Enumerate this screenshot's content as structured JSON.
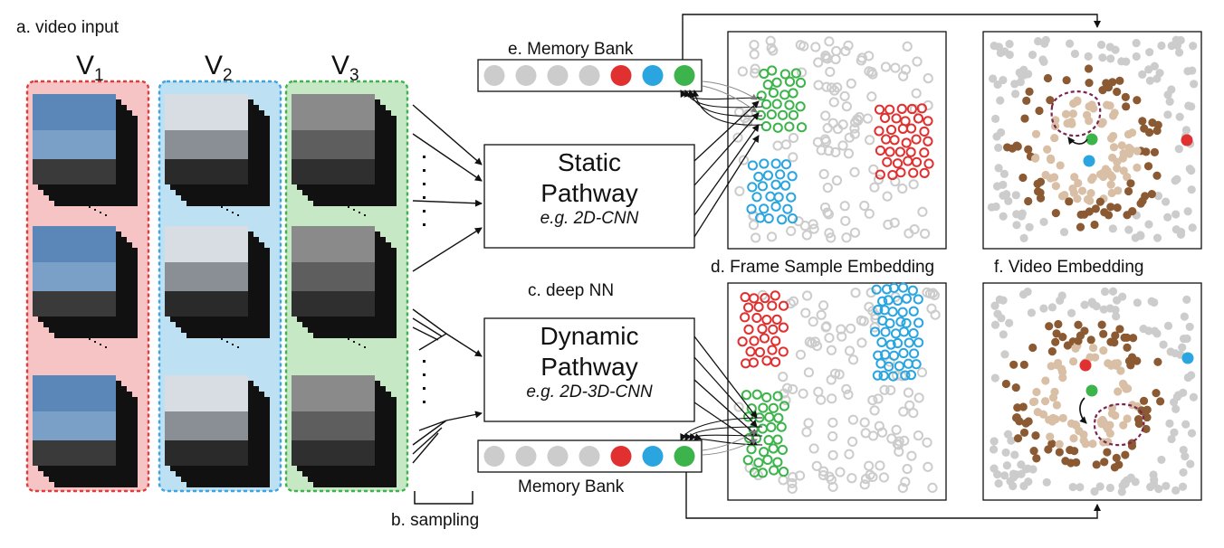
{
  "labels": {
    "video_input": "a. video input",
    "sampling": "b. sampling",
    "deep_nn": "c. deep NN",
    "frame_sample_embedding": "d. Frame Sample Embedding",
    "memory_bank_top": "e. Memory Bank",
    "memory_bank_bottom": "Memory Bank",
    "video_embedding": "f. Video Embedding"
  },
  "videos": [
    {
      "name": "V",
      "sub": "1",
      "border": "#e03c3c",
      "fill": "#f6c4c4"
    },
    {
      "name": "V",
      "sub": "2",
      "border": "#3ca4e0",
      "fill": "#bde0f3"
    },
    {
      "name": "V",
      "sub": "3",
      "border": "#3cb44b",
      "fill": "#c7e8c4"
    }
  ],
  "pathways": [
    {
      "title_line1": "Static",
      "title_line2": "Pathway",
      "example": "e.g. 2D-CNN"
    },
    {
      "title_line1": "Dynamic",
      "title_line2": "Pathway",
      "example": "e.g. 2D-3D-CNN"
    }
  ],
  "memory_bank_slots": [
    "#cccccc",
    "#cccccc",
    "#cccccc",
    "#cccccc",
    "#e03030",
    "#2aa5e0",
    "#3cb44b"
  ],
  "colors": {
    "red": "#e03030",
    "blue": "#2aa5e0",
    "green": "#3cb44b",
    "gray": "#cccccc",
    "light_brown": "#d8bfa6",
    "dark_brown": "#8b5a33",
    "purple_dashed": "#7b2450"
  }
}
